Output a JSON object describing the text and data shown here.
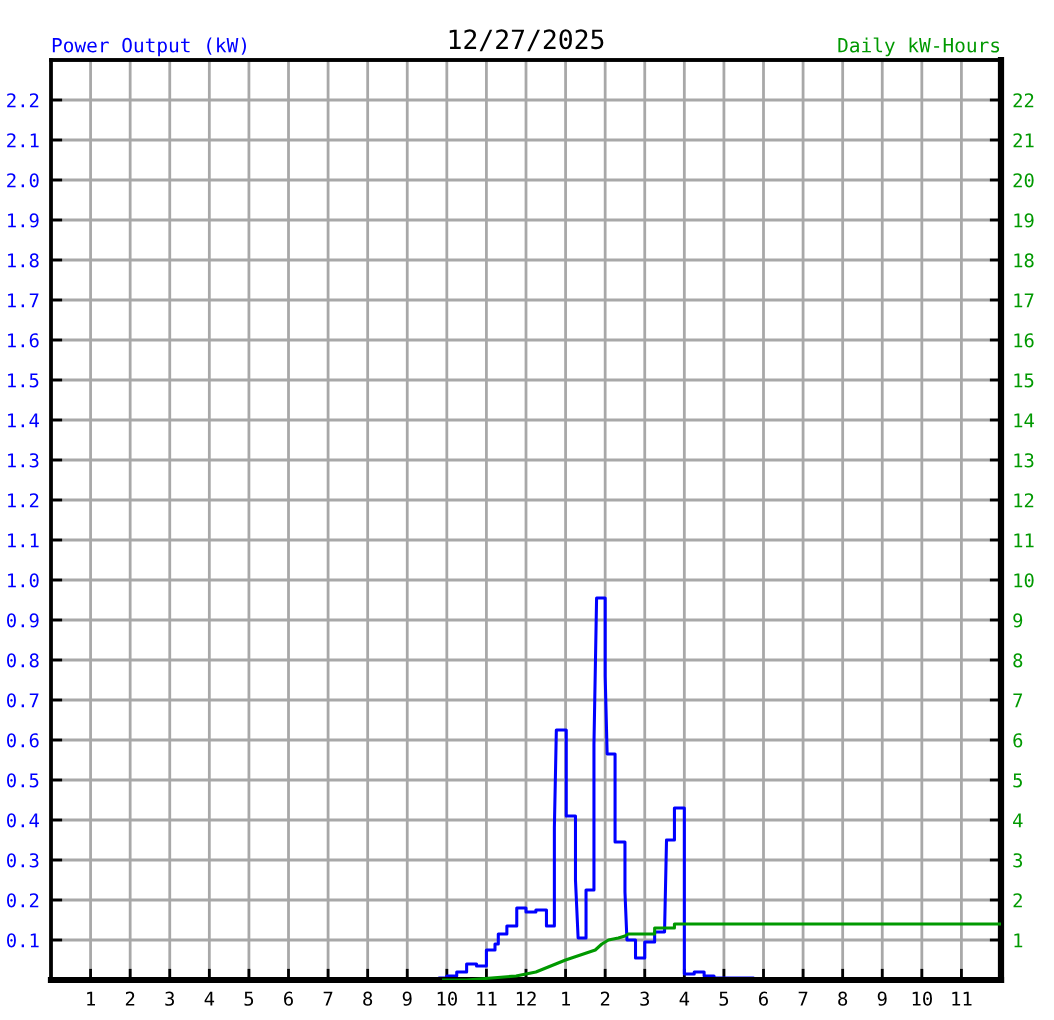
{
  "chart_data": {
    "type": "line",
    "title": "12/27/2025",
    "ylabel": "Power Output (kW)",
    "y2label": "Daily kW-Hours",
    "xlim": [
      "2025-12-27T00:00",
      "2025-12-28T00:00"
    ],
    "xticks": [
      {
        "value": "2025-12-27T01:00",
        "label": "1"
      },
      {
        "value": "2025-12-27T02:00",
        "label": "2"
      },
      {
        "value": "2025-12-27T03:00",
        "label": "3"
      },
      {
        "value": "2025-12-27T04:00",
        "label": "4"
      },
      {
        "value": "2025-12-27T05:00",
        "label": "5"
      },
      {
        "value": "2025-12-27T06:00",
        "label": "6"
      },
      {
        "value": "2025-12-27T07:00",
        "label": "7"
      },
      {
        "value": "2025-12-27T08:00",
        "label": "8"
      },
      {
        "value": "2025-12-27T09:00",
        "label": "9"
      },
      {
        "value": "2025-12-27T10:00",
        "label": "10"
      },
      {
        "value": "2025-12-27T11:00",
        "label": "11"
      },
      {
        "value": "2025-12-27T12:00",
        "label": "12"
      },
      {
        "value": "2025-12-27T13:00",
        "label": "1"
      },
      {
        "value": "2025-12-27T14:00",
        "label": "2"
      },
      {
        "value": "2025-12-27T15:00",
        "label": "3"
      },
      {
        "value": "2025-12-27T16:00",
        "label": "4"
      },
      {
        "value": "2025-12-27T17:00",
        "label": "5"
      },
      {
        "value": "2025-12-27T18:00",
        "label": "6"
      },
      {
        "value": "2025-12-27T19:00",
        "label": "7"
      },
      {
        "value": "2025-12-27T20:00",
        "label": "8"
      },
      {
        "value": "2025-12-27T21:00",
        "label": "9"
      },
      {
        "value": "2025-12-27T22:00",
        "label": "10"
      },
      {
        "value": "2025-12-27T23:00",
        "label": "11"
      }
    ],
    "ylim": [
      0,
      2.3
    ],
    "yticks": [
      0.1,
      0.2,
      0.3,
      0.4,
      0.5,
      0.6,
      0.7,
      0.8,
      0.9,
      {
        "value": 1,
        "label": "1.0"
      },
      1.1,
      1.2,
      1.3,
      1.4,
      1.5,
      1.6,
      1.7,
      1.8,
      1.9,
      {
        "value": 2,
        "label": "2.0"
      },
      2.1,
      2.2
    ],
    "y2lim": [
      0,
      23
    ],
    "y2ticks": [
      1,
      2,
      3,
      4,
      5,
      6,
      7,
      8,
      9,
      10,
      11,
      12,
      13,
      14,
      15,
      16,
      17,
      18,
      19,
      20,
      21,
      22
    ],
    "grid": true,
    "series": [
      {
        "color": "#0000ff",
        "axis": "y",
        "x": [
          "2025-12-27T09:48",
          "2025-12-27T09:48",
          "2025-12-27T10:00",
          "2025-12-27T10:00",
          "2025-12-27T10:15",
          "2025-12-27T10:15",
          "2025-12-27T10:30",
          "2025-12-27T10:30",
          "2025-12-27T10:45",
          "2025-12-27T10:45",
          "2025-12-27T11:00",
          "2025-12-27T11:00",
          "2025-12-27T11:13",
          "2025-12-27T11:13",
          "2025-12-27T11:18",
          "2025-12-27T11:18",
          "2025-12-27T11:31",
          "2025-12-27T11:31",
          "2025-12-27T11:46",
          "2025-12-27T11:46",
          "2025-12-27T12:00",
          "2025-12-27T12:00",
          "2025-12-27T12:15",
          "2025-12-27T12:15",
          "2025-12-27T12:31",
          "2025-12-27T12:31",
          "2025-12-27T12:43",
          "2025-12-27T12:43",
          "2025-12-27T12:46",
          "2025-12-27T13:01",
          "2025-12-27T13:01",
          "2025-12-27T13:15",
          "2025-12-27T13:15",
          "2025-12-27T13:19",
          "2025-12-27T13:31",
          "2025-12-27T13:31",
          "2025-12-27T13:43",
          "2025-12-27T13:43",
          "2025-12-27T13:47",
          "2025-12-27T14:00",
          "2025-12-27T14:00",
          "2025-12-27T14:03",
          "2025-12-27T14:15",
          "2025-12-27T14:15",
          "2025-12-27T14:30",
          "2025-12-27T14:30",
          "2025-12-27T14:33",
          "2025-12-27T14:46",
          "2025-12-27T14:46",
          "2025-12-27T15:00",
          "2025-12-27T15:00",
          "2025-12-27T15:15",
          "2025-12-27T15:15",
          "2025-12-27T15:30",
          "2025-12-27T15:33",
          "2025-12-27T15:45",
          "2025-12-27T15:45",
          "2025-12-27T16:00",
          "2025-12-27T16:00",
          "2025-12-27T16:15",
          "2025-12-27T16:15",
          "2025-12-27T16:30",
          "2025-12-27T16:30",
          "2025-12-27T16:45",
          "2025-12-27T16:45",
          "2025-12-27T17:45",
          "2025-12-27T17:45"
        ],
        "values": [
          0,
          0.005,
          0.005,
          0.01,
          0.01,
          0.02,
          0.02,
          0.04,
          0.04,
          0.035,
          0.035,
          0.075,
          0.075,
          0.09,
          0.09,
          0.115,
          0.115,
          0.135,
          0.135,
          0.18,
          0.18,
          0.17,
          0.17,
          0.175,
          0.175,
          0.135,
          0.135,
          0.38,
          0.625,
          0.625,
          0.41,
          0.41,
          0.25,
          0.105,
          0.105,
          0.225,
          0.225,
          0.59,
          0.955,
          0.955,
          0.76,
          0.565,
          0.565,
          0.345,
          0.345,
          0.22,
          0.1,
          0.1,
          0.055,
          0.055,
          0.095,
          0.095,
          0.12,
          0.12,
          0.35,
          0.35,
          0.43,
          0.43,
          0.015,
          0.015,
          0.02,
          0.02,
          0.01,
          0.01,
          0.005,
          0.005,
          0
        ]
      },
      {
        "color": "#009900",
        "axis": "y2",
        "x": [
          "2025-12-27T09:55",
          "2025-12-27T10:30",
          "2025-12-27T11:45",
          "2025-12-27T12:15",
          "2025-12-27T12:45",
          "2025-12-27T13:00",
          "2025-12-27T13:45",
          "2025-12-27T13:55",
          "2025-12-27T14:05",
          "2025-12-27T14:20",
          "2025-12-27T14:30",
          "2025-12-27T14:35",
          "2025-12-27T15:15",
          "2025-12-27T15:15",
          "2025-12-27T15:45",
          "2025-12-27T15:45",
          "2025-12-28T00:00"
        ],
        "values": [
          0,
          0,
          0.1,
          0.2,
          0.4,
          0.5,
          0.75,
          0.9,
          1.0,
          1.05,
          1.1,
          1.15,
          1.15,
          1.3,
          1.3,
          1.4,
          1.4
        ]
      }
    ]
  }
}
